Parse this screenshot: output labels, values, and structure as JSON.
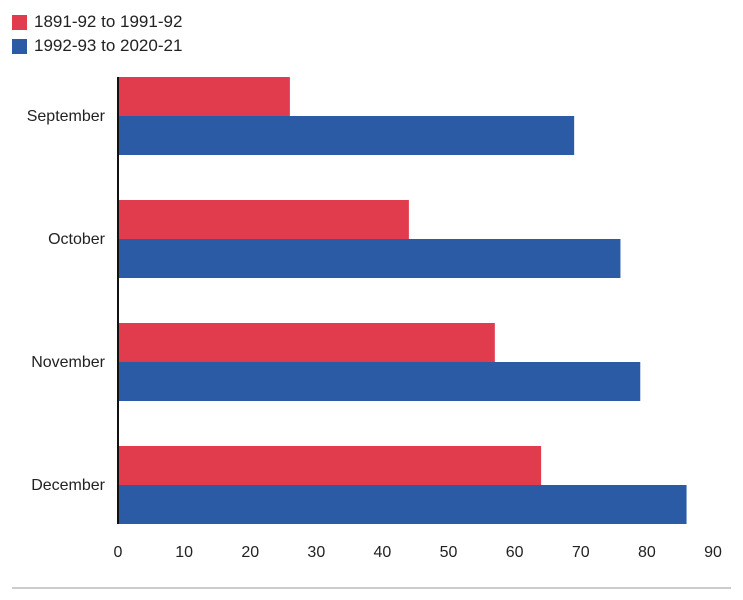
{
  "chart_data": {
    "type": "bar",
    "orientation": "horizontal",
    "categories": [
      "September",
      "October",
      "November",
      "December"
    ],
    "series": [
      {
        "name": "1891-92 to 1991-92",
        "color": "#e03c4d",
        "values": [
          26,
          44,
          57,
          64
        ]
      },
      {
        "name": "1992-93 to 2020-21",
        "color": "#2c5ba6",
        "values": [
          69,
          76,
          79,
          86
        ]
      }
    ],
    "x_ticks": [
      "0",
      "10",
      "20",
      "30",
      "40",
      "50",
      "60",
      "70",
      "80",
      "90"
    ],
    "xlim": [
      0,
      90
    ],
    "grid": false,
    "legend_position": "top-left"
  }
}
